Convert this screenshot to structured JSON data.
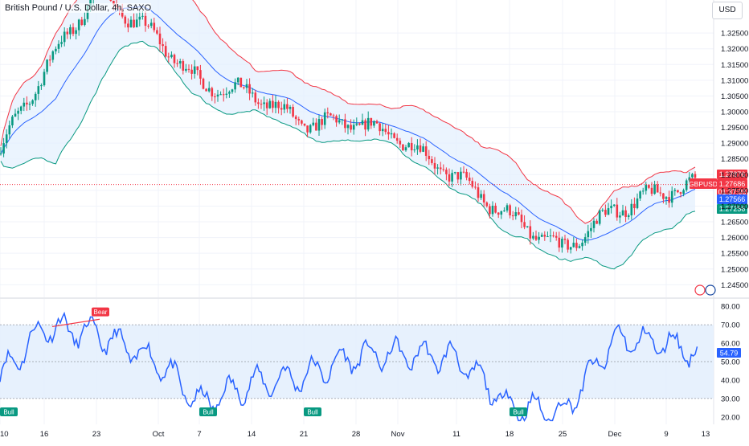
{
  "header": {
    "title": "British Pound / U.S. Dollar, 4h, SAXO",
    "currency_button": "USD"
  },
  "price_tags": {
    "symbol": "GBPUSD",
    "upper_band": "1.27876",
    "last_price": "1.27686",
    "countdown": "01:37:08",
    "basis": "1.27566",
    "lower_band": "1.27256"
  },
  "rsi_tag": "54.79",
  "colors": {
    "bull_candle": "#089981",
    "bear_candle": "#f23645",
    "upper_band": "#f23645",
    "lower_band": "#089981",
    "basis": "#2962ff",
    "band_fill": "#e3effd",
    "rsi_line": "#2962ff",
    "rsi_zone": "#e3effd"
  },
  "chart_data": [
    {
      "type": "candlestick",
      "title": "British Pound / U.S. Dollar, 4h, SAXO",
      "ylim": [
        1.241,
        1.3355
      ],
      "yticks": [
        "1.32500",
        "1.32000",
        "1.31500",
        "1.31000",
        "1.30500",
        "1.30000",
        "1.29500",
        "1.29000",
        "1.28500",
        "1.28000",
        "1.27500",
        "1.27000",
        "1.26500",
        "1.26000",
        "1.25500",
        "1.25000",
        "1.24500"
      ],
      "x_labels": [
        "10",
        "16",
        "23",
        "Oct",
        "7",
        "14",
        "21",
        "28",
        "Nov",
        "11",
        "18",
        "25",
        "Dec",
        "9",
        "13"
      ],
      "indicators": [
        "Bollinger Bands (upper, basis, lower)"
      ],
      "anchors": [
        {
          "label": "10",
          "close": 1.288
        },
        {
          "label": "16",
          "close": 1.313
        },
        {
          "label": "23",
          "close": 1.3385
        },
        {
          "label": "Oct",
          "close": 1.323
        },
        {
          "label": "7",
          "close": 1.309
        },
        {
          "label": "14",
          "close": 1.3058
        },
        {
          "label": "21",
          "close": 1.296
        },
        {
          "label": "28",
          "close": 1.2965
        },
        {
          "label": "Nov",
          "close": 1.292
        },
        {
          "label": "11",
          "close": 1.279
        },
        {
          "label": "18",
          "close": 1.2665
        },
        {
          "label": "25",
          "close": 1.256
        },
        {
          "label": "Dec",
          "close": 1.269
        },
        {
          "label": "9",
          "close": 1.275
        },
        {
          "label": "last",
          "close": 1.27686
        }
      ],
      "last_price": 1.27686,
      "bands_last": {
        "upper": 1.27876,
        "basis": 1.27566,
        "lower": 1.27256
      }
    },
    {
      "type": "line",
      "title": "",
      "ylim": [
        16,
        84
      ],
      "yticks": [
        "80.00",
        "70.00",
        "60.00",
        "50.00",
        "40.00",
        "30.00",
        "20.00"
      ],
      "overbought": 70,
      "oversold": 30,
      "midline": 50,
      "last_value": 54.79,
      "x_labels": [
        "10",
        "16",
        "23",
        "Oct",
        "7",
        "14",
        "21",
        "28",
        "Nov",
        "11",
        "18",
        "25",
        "Dec",
        "9",
        "13"
      ],
      "points": [
        {
          "x": "10",
          "y": 42
        },
        {
          "x": "16",
          "y": 69
        },
        {
          "x": "23",
          "y": 65
        },
        {
          "x": "Oct",
          "y": 50
        },
        {
          "x": "7",
          "y": 27
        },
        {
          "x": "14",
          "y": 38
        },
        {
          "x": "21",
          "y": 42
        },
        {
          "x": "28",
          "y": 53
        },
        {
          "x": "Nov",
          "y": 54
        },
        {
          "x": "11",
          "y": 52
        },
        {
          "x": "18",
          "y": 26
        },
        {
          "x": "25",
          "y": 22
        },
        {
          "x": "Dec",
          "y": 62
        },
        {
          "x": "9",
          "y": 60
        },
        {
          "x": "last",
          "y": 54.79
        }
      ],
      "annotations": [
        {
          "text": "Bear",
          "at": "23"
        },
        {
          "text": "Bull",
          "at": "10"
        },
        {
          "text": "Bull",
          "at": "7"
        },
        {
          "text": "Bull",
          "at": "21"
        },
        {
          "text": "Bull",
          "at": "18"
        }
      ]
    }
  ]
}
